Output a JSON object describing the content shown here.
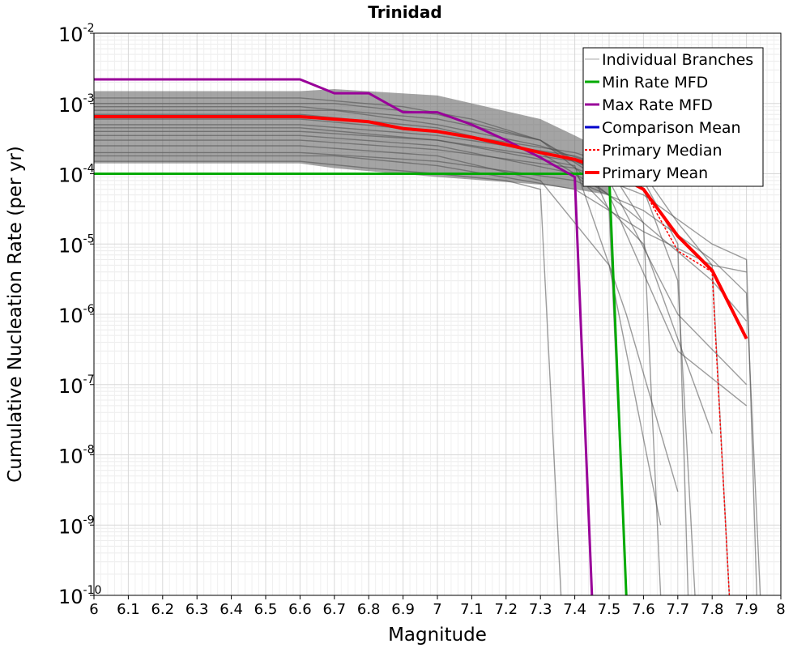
{
  "chart_data": {
    "type": "line",
    "title": "Trinidad",
    "xlabel": "Magnitude",
    "ylabel": "Cumulative Nucleation Rate (per yr)",
    "xlim": [
      6,
      8
    ],
    "ylim": [
      1e-10,
      0.01
    ],
    "yscale": "log",
    "grid": true,
    "legend_position": "top-right",
    "x_ticks": [
      "6",
      "6.1",
      "6.2",
      "6.3",
      "6.4",
      "6.5",
      "6.6",
      "6.7",
      "6.8",
      "6.9",
      "7",
      "7.1",
      "7.2",
      "7.3",
      "7.4",
      "7.5",
      "7.6",
      "7.7",
      "7.8",
      "7.9",
      "8"
    ],
    "y_ticks": [
      {
        "value": 1e-10,
        "base": "10",
        "exp": "-10"
      },
      {
        "value": 1e-09,
        "base": "10",
        "exp": "-9"
      },
      {
        "value": 1e-08,
        "base": "10",
        "exp": "-8"
      },
      {
        "value": 1e-07,
        "base": "10",
        "exp": "-7"
      },
      {
        "value": 1e-06,
        "base": "10",
        "exp": "-6"
      },
      {
        "value": 1e-05,
        "base": "10",
        "exp": "-5"
      },
      {
        "value": 0.0001,
        "base": "10",
        "exp": "-4"
      },
      {
        "value": 0.001,
        "base": "10",
        "exp": "-3"
      },
      {
        "value": 0.01,
        "base": "10",
        "exp": "-2"
      }
    ],
    "series": [
      {
        "name": "Individual Branches",
        "color": "#4d4d4d",
        "note_style": "many thin translucent gray lines",
        "lines": [
          {
            "x": [
              6,
              6.6,
              6.8,
              7.0,
              7.2,
              7.3,
              7.36
            ],
            "y": [
              0.00015,
              0.00015,
              0.00012,
              0.0001,
              8e-05,
              6e-05,
              1e-10
            ]
          },
          {
            "x": [
              6,
              6.6,
              6.9,
              7.1,
              7.3,
              7.45,
              7.5,
              7.55
            ],
            "y": [
              0.0012,
              0.0012,
              0.0009,
              0.0006,
              0.0003,
              0.0001,
              3e-05,
              1e-10
            ]
          },
          {
            "x": [
              6,
              6.7,
              7.0,
              7.3,
              7.5,
              7.6,
              7.65
            ],
            "y": [
              0.0008,
              0.0008,
              0.0005,
              0.00025,
              0.00012,
              2e-05,
              1e-10
            ]
          },
          {
            "x": [
              6,
              6.6,
              7.0,
              7.4,
              7.6,
              7.7,
              7.73
            ],
            "y": [
              0.0005,
              0.0005,
              0.00035,
              0.00018,
              8e-05,
              1e-05,
              1e-10
            ]
          },
          {
            "x": [
              6,
              6.6,
              7.0,
              7.4,
              7.6,
              7.7,
              7.75
            ],
            "y": [
              0.0004,
              0.0004,
              0.0003,
              0.00015,
              6e-05,
              3e-06,
              1e-10
            ]
          },
          {
            "x": [
              6,
              6.6,
              7.0,
              7.4,
              7.6,
              7.7,
              7.8,
              7.85
            ],
            "y": [
              0.0006,
              0.0006,
              0.0004,
              0.0002,
              0.0001,
              2e-05,
              5e-06,
              1e-10
            ]
          },
          {
            "x": [
              6,
              6.6,
              7.0,
              7.4,
              7.6,
              7.8,
              7.9,
              7.93
            ],
            "y": [
              0.0003,
              0.0003,
              0.00022,
              0.00012,
              5e-05,
              1e-05,
              6e-06,
              1e-10
            ]
          },
          {
            "x": [
              6,
              6.6,
              7.0,
              7.4,
              7.6,
              7.8,
              7.9,
              7.94
            ],
            "y": [
              0.0002,
              0.0002,
              0.00015,
              8e-05,
              3e-05,
              6e-06,
              2e-06,
              1e-10
            ]
          },
          {
            "x": [
              6,
              6.6,
              7.0,
              7.3,
              7.5,
              7.7,
              7.9
            ],
            "y": [
              0.0007,
              0.0007,
              0.00045,
              0.0002,
              5e-05,
              3e-07,
              5e-08
            ]
          },
          {
            "x": [
              6,
              6.6,
              7.0,
              7.3,
              7.5,
              7.7,
              7.9
            ],
            "y": [
              0.0009,
              0.0009,
              0.0006,
              0.0003,
              8e-05,
              1e-06,
              1e-07
            ]
          },
          {
            "x": [
              6,
              6.6,
              7.0,
              7.4,
              7.6,
              7.8
            ],
            "y": [
              0.00035,
              0.00035,
              0.00025,
              0.0001,
              1e-05,
              2e-08
            ]
          },
          {
            "x": [
              6,
              6.6,
              7.0,
              7.4,
              7.55,
              7.7
            ],
            "y": [
              0.00045,
              0.00045,
              0.0003,
              0.00013,
              1e-06,
              3e-09
            ]
          },
          {
            "x": [
              6,
              6.6,
              7.0,
              7.3,
              7.5,
              7.65
            ],
            "y": [
              0.00025,
              0.00025,
              0.00018,
              8e-05,
              5e-06,
              1e-09
            ]
          },
          {
            "x": [
              6,
              6.7,
              7.0,
              7.3,
              7.6,
              7.8,
              7.9
            ],
            "y": [
              0.001,
              0.001,
              0.0007,
              0.0003,
              2e-05,
              3e-06,
              8e-07
            ]
          },
          {
            "x": [
              6,
              6.7,
              7.0,
              7.4,
              7.6,
              7.8,
              7.9
            ],
            "y": [
              0.00018,
              0.00018,
              0.00013,
              6e-05,
              1.5e-05,
              5e-06,
              4e-06
            ]
          }
        ]
      },
      {
        "name": "Min Rate MFD",
        "color": "#00aa00",
        "x": [
          6,
          6.6,
          7.0,
          7.4,
          7.5,
          7.55
        ],
        "y": [
          0.0001,
          0.0001,
          0.0001,
          0.0001,
          0.0001,
          1e-10
        ]
      },
      {
        "name": "Max Rate MFD",
        "color": "#990099",
        "x": [
          6,
          6.6,
          6.7,
          6.8,
          6.9,
          7.0,
          7.1,
          7.2,
          7.3,
          7.4,
          7.45
        ],
        "y": [
          0.0022,
          0.0022,
          0.0014,
          0.0014,
          0.00075,
          0.00075,
          0.0005,
          0.0003,
          0.00017,
          9e-05,
          1e-10
        ]
      },
      {
        "name": "Comparison Mean",
        "color": "#0000cc",
        "x": [],
        "y": []
      },
      {
        "name": "Primary Median",
        "color": "#ff0000",
        "dashed": true,
        "x": [
          6,
          6.6,
          6.8,
          6.9,
          7.0,
          7.1,
          7.2,
          7.3,
          7.4,
          7.5,
          7.6,
          7.7,
          7.8,
          7.85
        ],
        "y": [
          0.00065,
          0.00065,
          0.00055,
          0.00044,
          0.0004,
          0.00033,
          0.00026,
          0.0002,
          0.00016,
          0.00011,
          6e-05,
          8e-06,
          4e-06,
          1e-10
        ]
      },
      {
        "name": "Primary Mean",
        "color": "#ff0000",
        "x": [
          6,
          6.6,
          6.8,
          6.9,
          7.0,
          7.1,
          7.2,
          7.3,
          7.4,
          7.5,
          7.6,
          7.7,
          7.8,
          7.9
        ],
        "y": [
          0.00065,
          0.00065,
          0.00055,
          0.00044,
          0.0004,
          0.00033,
          0.00026,
          0.0002,
          0.00016,
          0.00011,
          6e-05,
          1.3e-05,
          4.2e-06,
          4.5e-07
        ]
      }
    ]
  }
}
